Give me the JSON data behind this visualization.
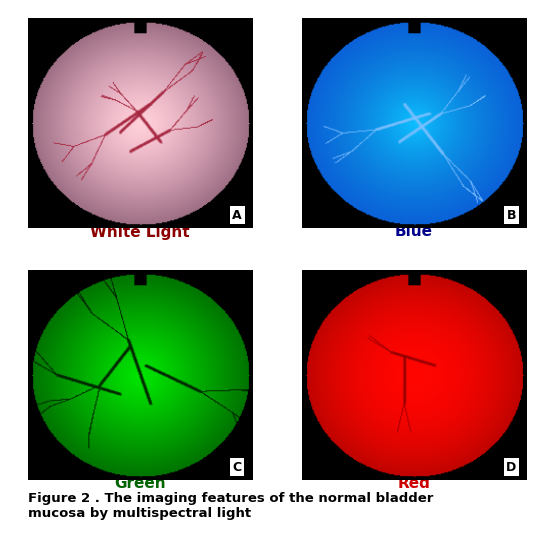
{
  "figure_title": "Figure 2 . The imaging features of the normal bladder\nmucosa by multispectral light",
  "panels": [
    {
      "label": "A",
      "color_name": "White Light",
      "color_name_color": "#8B0000",
      "bg": "pink_white"
    },
    {
      "label": "B",
      "color_name": "Blue",
      "color_name_color": "#00008B",
      "bg": "blue"
    },
    {
      "label": "C",
      "color_name": "Green",
      "color_name_color": "#006400",
      "bg": "green"
    },
    {
      "label": "D",
      "color_name": "Red",
      "color_name_color": "#CC0000",
      "bg": "red"
    }
  ],
  "title_fontsize": 9.5,
  "label_fontsize": 10,
  "color_name_fontsize": 11,
  "border_color": "#bbbbbb",
  "panel_border_color": "#444444"
}
